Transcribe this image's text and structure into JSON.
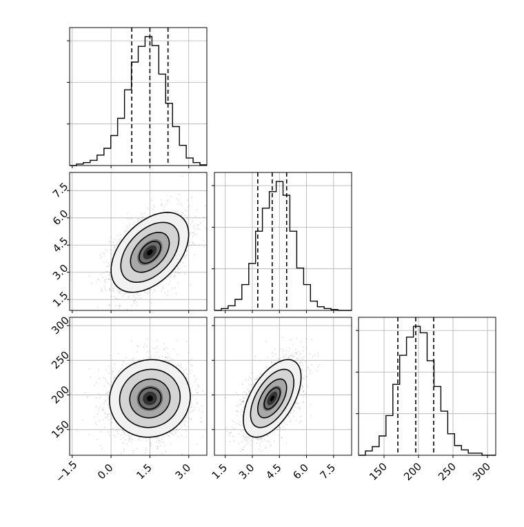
{
  "chart_data": {
    "type": "corner",
    "parameters": [
      {
        "ticks": [
          "−1.5",
          "0.0",
          "1.5",
          "3.0"
        ],
        "tick_values": [
          -1.5,
          0.0,
          1.5,
          3.0
        ],
        "range": [
          -1.6,
          3.7
        ]
      },
      {
        "ticks": [
          "1.5",
          "3.0",
          "4.5",
          "6.0",
          "7.5"
        ],
        "tick_values": [
          1.5,
          3.0,
          4.5,
          6.0,
          7.5
        ],
        "range": [
          0.9,
          8.5
        ]
      },
      {
        "ticks": [
          "150",
          "200",
          "250",
          "300"
        ],
        "tick_values": [
          150,
          200,
          250,
          300
        ],
        "range": [
          113,
          312
        ]
      }
    ],
    "histograms": [
      {
        "parameter": 0,
        "bin_edges": [
          -1.6,
          -1.335,
          -1.07,
          -0.805,
          -0.54,
          -0.275,
          -0.01,
          0.255,
          0.52,
          0.785,
          1.05,
          1.315,
          1.58,
          1.845,
          2.11,
          2.375,
          2.64,
          2.905,
          3.17,
          3.435,
          3.7
        ],
        "counts": [
          0,
          2,
          4,
          7,
          14,
          23,
          40,
          63,
          101,
          138,
          159,
          172,
          160,
          122,
          83,
          52,
          27,
          10,
          4,
          1
        ],
        "quantiles": [
          0.8,
          1.5,
          2.2
        ]
      },
      {
        "parameter": 1,
        "bin_edges": [
          0.9,
          1.28,
          1.66,
          2.04,
          2.42,
          2.8,
          3.18,
          3.56,
          3.94,
          4.32,
          4.7,
          5.08,
          5.46,
          5.84,
          6.22,
          6.6,
          6.98,
          7.36,
          7.74,
          8.12,
          8.5
        ],
        "counts": [
          0,
          2,
          5,
          12,
          28,
          51,
          86,
          111,
          129,
          140,
          125,
          86,
          46,
          28,
          10,
          4,
          2,
          1,
          0,
          0
        ],
        "quantiles": [
          3.3,
          4.1,
          4.9
        ]
      },
      {
        "parameter": 2,
        "bin_edges": [
          113,
          122.95,
          132.9,
          142.85,
          152.8,
          162.75,
          172.7,
          182.65,
          192.6,
          202.55,
          212.5,
          222.45,
          232.4,
          242.35,
          252.3,
          262.25,
          272.2,
          282.15,
          292.1,
          302.05,
          312
        ],
        "counts": [
          0,
          4,
          8,
          18,
          37,
          66,
          93,
          110,
          120,
          114,
          88,
          64,
          41,
          20,
          9,
          5,
          2,
          2,
          0,
          0
        ],
        "quantiles": [
          170,
          196,
          222
        ]
      }
    ],
    "joint_distributions": [
      {
        "x_parameter": 0,
        "y_parameter": 1,
        "mean": [
          1.5,
          4.1
        ],
        "std": [
          0.75,
          1.1
        ],
        "correlation": 0.45,
        "contour_levels": [
          "0.5σ",
          "1σ",
          "1.5σ",
          "2σ"
        ]
      },
      {
        "x_parameter": 0,
        "y_parameter": 2,
        "mean": [
          1.5,
          195
        ],
        "std": [
          0.78,
          28
        ],
        "correlation": 0.05,
        "contour_levels": [
          "0.5σ",
          "1σ",
          "1.5σ",
          "2σ"
        ]
      },
      {
        "x_parameter": 1,
        "y_parameter": 2,
        "mean": [
          4.1,
          195
        ],
        "std": [
          0.8,
          28
        ],
        "correlation": 0.55,
        "contour_levels": [
          "0.5σ",
          "1σ",
          "1.5σ",
          "2σ"
        ]
      }
    ],
    "grid": true,
    "colors": {
      "line": "#000000",
      "quantile": "#000000",
      "grid": "#b0b0b0",
      "scatter": "#9a9a9a",
      "density_low": "#f4f4f4",
      "density_high": "#000000"
    }
  }
}
